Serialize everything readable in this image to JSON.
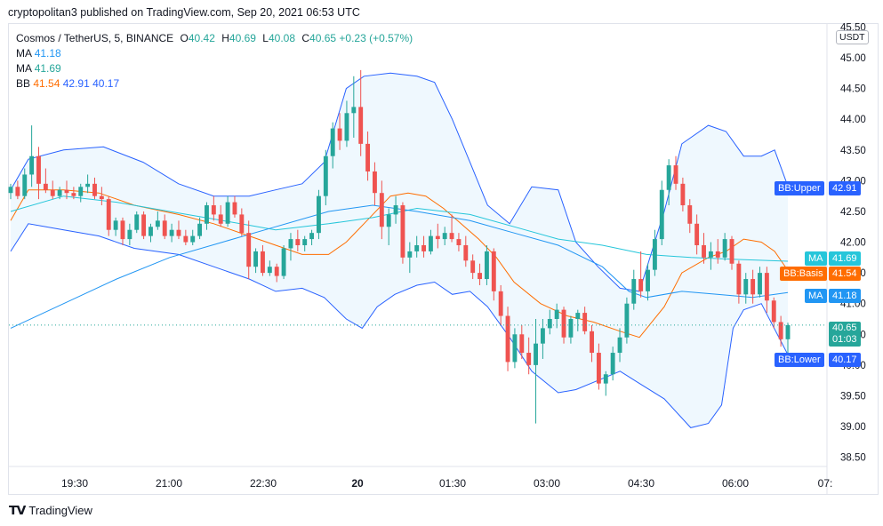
{
  "header": {
    "published": "cryptopolitan3 published on TradingView.com, Sep 20, 2021 06:53 UTC"
  },
  "legend": {
    "symbol": "Cosmos / TetherUS, 5, BINANCE",
    "o_key": "O",
    "o": "40.42",
    "h_key": "H",
    "h": "40.69",
    "l_key": "L",
    "l": "40.08",
    "c_key": "C",
    "c": "40.65",
    "change": "+0.23 (+0.57%)",
    "ma1_label": "MA",
    "ma1": "41.18",
    "ma2_label": "MA",
    "ma2": "41.69",
    "bb_label": "BB",
    "bb_basis": "41.54",
    "bb_upper": "42.91",
    "bb_lower": "40.17"
  },
  "axis": {
    "currency": "USDT"
  },
  "badges": {
    "bb_upper": {
      "label": "BB:Upper",
      "value": "42.91"
    },
    "ma2": {
      "label": "MA",
      "value": "41.69"
    },
    "bb_basis": {
      "label": "BB:Basis",
      "value": "41.54"
    },
    "ma1": {
      "label": "MA",
      "value": "41.18"
    },
    "last": {
      "value": "40.65",
      "countdown": "01:03"
    },
    "bb_lower": {
      "label": "BB:Lower",
      "value": "40.17"
    }
  },
  "footer": {
    "brand": "TradingView"
  },
  "colors": {
    "up": "#26a69a",
    "down": "#ef5350",
    "basis": "#ff6d00",
    "band": "#2962ff",
    "ma1": "#2196f3",
    "ma2": "#26c6da",
    "fill": "#2196f3"
  },
  "chart_data": {
    "type": "candlestick",
    "title": "Cosmos / TetherUS, 5, BINANCE",
    "y_ticks": [
      "38.50",
      "39.00",
      "39.50",
      "40.00",
      "40.50",
      "41.00",
      "41.50",
      "42.00",
      "42.50",
      "43.00",
      "43.50",
      "44.00",
      "44.50",
      "45.00",
      "45.50"
    ],
    "ylim": [
      38.35,
      45.55
    ],
    "x_ticks": [
      "19:30",
      "21:00",
      "22:30",
      "20",
      "01:30",
      "03:00",
      "04:30",
      "06:00",
      "07:"
    ],
    "last_price": 40.65,
    "series": [
      {
        "name": "BB:Upper",
        "points": [
          [
            0,
            42.85
          ],
          [
            20,
            43.35
          ],
          [
            60,
            43.5
          ],
          [
            105,
            43.55
          ],
          [
            150,
            43.3
          ],
          [
            190,
            42.95
          ],
          [
            230,
            42.75
          ],
          [
            270,
            42.75
          ],
          [
            300,
            42.85
          ],
          [
            330,
            42.95
          ],
          [
            355,
            43.3
          ],
          [
            380,
            44.5
          ],
          [
            400,
            44.7
          ],
          [
            430,
            44.75
          ],
          [
            460,
            44.7
          ],
          [
            480,
            44.6
          ],
          [
            500,
            44.0
          ],
          [
            520,
            43.3
          ],
          [
            540,
            42.6
          ],
          [
            565,
            42.3
          ],
          [
            590,
            42.9
          ],
          [
            620,
            42.85
          ],
          [
            640,
            42.0
          ],
          [
            665,
            41.6
          ],
          [
            690,
            41.25
          ],
          [
            712,
            41.2
          ],
          [
            740,
            42.5
          ],
          [
            760,
            43.6
          ],
          [
            790,
            43.9
          ],
          [
            810,
            43.8
          ],
          [
            830,
            43.4
          ],
          [
            850,
            43.4
          ],
          [
            865,
            43.5
          ],
          [
            880,
            42.91
          ]
        ]
      },
      {
        "name": "BB:Basis",
        "points": [
          [
            0,
            42.35
          ],
          [
            20,
            42.85
          ],
          [
            60,
            42.85
          ],
          [
            100,
            42.8
          ],
          [
            140,
            42.6
          ],
          [
            190,
            42.45
          ],
          [
            230,
            42.3
          ],
          [
            270,
            42.1
          ],
          [
            300,
            41.95
          ],
          [
            330,
            41.8
          ],
          [
            360,
            41.8
          ],
          [
            380,
            42.0
          ],
          [
            400,
            42.3
          ],
          [
            430,
            42.75
          ],
          [
            450,
            42.8
          ],
          [
            470,
            42.75
          ],
          [
            490,
            42.55
          ],
          [
            510,
            42.3
          ],
          [
            530,
            42.05
          ],
          [
            550,
            41.75
          ],
          [
            570,
            41.35
          ],
          [
            600,
            41.0
          ],
          [
            630,
            40.8
          ],
          [
            660,
            40.7
          ],
          [
            690,
            40.55
          ],
          [
            712,
            40.45
          ],
          [
            740,
            40.95
          ],
          [
            760,
            41.5
          ],
          [
            790,
            41.75
          ],
          [
            810,
            41.85
          ],
          [
            830,
            42.05
          ],
          [
            850,
            42.0
          ],
          [
            865,
            41.85
          ],
          [
            880,
            41.54
          ]
        ]
      },
      {
        "name": "BB:Lower",
        "points": [
          [
            0,
            41.85
          ],
          [
            20,
            42.3
          ],
          [
            60,
            42.2
          ],
          [
            100,
            42.1
          ],
          [
            140,
            41.9
          ],
          [
            190,
            41.8
          ],
          [
            230,
            41.6
          ],
          [
            270,
            41.4
          ],
          [
            300,
            41.2
          ],
          [
            330,
            41.25
          ],
          [
            355,
            41.1
          ],
          [
            380,
            40.75
          ],
          [
            398,
            40.6
          ],
          [
            415,
            40.95
          ],
          [
            435,
            41.15
          ],
          [
            460,
            41.3
          ],
          [
            480,
            41.35
          ],
          [
            500,
            41.15
          ],
          [
            520,
            41.2
          ],
          [
            540,
            40.95
          ],
          [
            565,
            40.45
          ],
          [
            590,
            39.9
          ],
          [
            620,
            39.55
          ],
          [
            640,
            39.6
          ],
          [
            665,
            39.75
          ],
          [
            690,
            39.9
          ],
          [
            712,
            39.7
          ],
          [
            740,
            39.45
          ],
          [
            770,
            38.98
          ],
          [
            790,
            39.05
          ],
          [
            805,
            39.35
          ],
          [
            818,
            40.6
          ],
          [
            830,
            40.9
          ],
          [
            850,
            41.0
          ],
          [
            880,
            40.17
          ]
        ]
      },
      {
        "name": "MA",
        "points": [
          [
            0,
            42.5
          ],
          [
            60,
            42.75
          ],
          [
            120,
            42.65
          ],
          [
            180,
            42.5
          ],
          [
            240,
            42.35
          ],
          [
            300,
            42.2
          ],
          [
            360,
            42.3
          ],
          [
            410,
            42.4
          ],
          [
            460,
            42.55
          ],
          [
            520,
            42.45
          ],
          [
            570,
            42.25
          ],
          [
            620,
            42.05
          ],
          [
            670,
            41.95
          ],
          [
            720,
            41.8
          ],
          [
            770,
            41.75
          ],
          [
            820,
            41.72
          ],
          [
            880,
            41.69
          ]
        ]
      },
      {
        "name": "MA",
        "points": [
          [
            0,
            40.6
          ],
          [
            60,
            41.0
          ],
          [
            120,
            41.4
          ],
          [
            180,
            41.75
          ],
          [
            240,
            42.0
          ],
          [
            300,
            42.25
          ],
          [
            360,
            42.5
          ],
          [
            410,
            42.6
          ],
          [
            460,
            42.5
          ],
          [
            520,
            42.35
          ],
          [
            570,
            42.15
          ],
          [
            620,
            41.95
          ],
          [
            670,
            41.6
          ],
          [
            700,
            41.2
          ],
          [
            720,
            41.1
          ],
          [
            760,
            41.2
          ],
          [
            800,
            41.15
          ],
          [
            840,
            41.1
          ],
          [
            880,
            41.18
          ]
        ]
      }
    ],
    "candles": [
      [
        42.8,
        42.95,
        42.7,
        42.9
      ],
      [
        42.9,
        43.0,
        42.7,
        42.75
      ],
      [
        42.75,
        43.2,
        42.7,
        43.1
      ],
      [
        43.1,
        43.9,
        42.9,
        43.4
      ],
      [
        43.4,
        43.55,
        42.7,
        42.95
      ],
      [
        42.95,
        43.2,
        42.8,
        42.85
      ],
      [
        42.85,
        43.0,
        42.7,
        42.75
      ],
      [
        42.75,
        42.9,
        42.7,
        42.85
      ],
      [
        42.85,
        43.0,
        42.7,
        42.8
      ],
      [
        42.8,
        42.9,
        42.7,
        42.75
      ],
      [
        42.75,
        42.95,
        42.65,
        42.9
      ],
      [
        42.9,
        43.1,
        42.8,
        42.95
      ],
      [
        42.95,
        43.05,
        42.7,
        42.75
      ],
      [
        42.75,
        42.9,
        42.6,
        42.7
      ],
      [
        42.7,
        42.75,
        42.1,
        42.2
      ],
      [
        42.2,
        42.4,
        42.1,
        42.35
      ],
      [
        42.35,
        42.4,
        41.95,
        42.05
      ],
      [
        42.05,
        42.3,
        41.95,
        42.2
      ],
      [
        42.2,
        42.5,
        42.15,
        42.45
      ],
      [
        42.45,
        42.5,
        42.05,
        42.1
      ],
      [
        42.1,
        42.3,
        42.0,
        42.25
      ],
      [
        42.25,
        42.5,
        42.2,
        42.35
      ],
      [
        42.35,
        42.45,
        42.05,
        42.1
      ],
      [
        42.1,
        42.3,
        42.0,
        42.2
      ],
      [
        42.2,
        42.35,
        42.05,
        42.1
      ],
      [
        42.1,
        42.2,
        41.95,
        42.0
      ],
      [
        42.0,
        42.2,
        41.95,
        42.1
      ],
      [
        42.1,
        42.4,
        42.05,
        42.3
      ],
      [
        42.3,
        42.65,
        42.2,
        42.6
      ],
      [
        42.6,
        42.75,
        42.35,
        42.45
      ],
      [
        42.45,
        42.6,
        42.25,
        42.3
      ],
      [
        42.3,
        42.75,
        42.25,
        42.65
      ],
      [
        42.65,
        42.75,
        42.4,
        42.45
      ],
      [
        42.45,
        42.55,
        42.1,
        42.15
      ],
      [
        42.15,
        42.35,
        41.4,
        41.6
      ],
      [
        41.6,
        41.9,
        41.5,
        41.85
      ],
      [
        41.85,
        41.95,
        41.45,
        41.5
      ],
      [
        41.5,
        41.7,
        41.45,
        41.6
      ],
      [
        41.6,
        41.65,
        41.35,
        41.45
      ],
      [
        41.45,
        41.95,
        41.4,
        41.9
      ],
      [
        41.9,
        42.15,
        41.7,
        42.05
      ],
      [
        42.05,
        42.2,
        41.85,
        41.95
      ],
      [
        41.95,
        42.1,
        41.85,
        42.05
      ],
      [
        42.05,
        42.2,
        41.95,
        42.15
      ],
      [
        42.15,
        42.85,
        42.05,
        42.75
      ],
      [
        42.75,
        43.5,
        42.6,
        43.4
      ],
      [
        43.4,
        43.95,
        43.2,
        43.85
      ],
      [
        43.85,
        44.1,
        43.5,
        43.65
      ],
      [
        43.65,
        44.3,
        43.55,
        44.1
      ],
      [
        44.1,
        44.7,
        43.7,
        44.2
      ],
      [
        44.2,
        44.8,
        43.4,
        43.6
      ],
      [
        43.6,
        43.8,
        43.0,
        43.15
      ],
      [
        43.15,
        43.3,
        42.6,
        42.8
      ],
      [
        42.8,
        43.0,
        42.05,
        42.25
      ],
      [
        42.25,
        42.55,
        41.95,
        42.45
      ],
      [
        42.45,
        42.75,
        42.3,
        42.6
      ],
      [
        42.6,
        42.65,
        41.65,
        41.75
      ],
      [
        41.75,
        42.0,
        41.5,
        41.85
      ],
      [
        41.85,
        42.1,
        41.75,
        41.95
      ],
      [
        41.95,
        42.1,
        41.75,
        41.85
      ],
      [
        41.85,
        42.2,
        41.8,
        42.1
      ],
      [
        42.1,
        42.3,
        41.9,
        42.05
      ],
      [
        42.05,
        42.25,
        41.95,
        42.15
      ],
      [
        42.15,
        42.45,
        42.0,
        42.05
      ],
      [
        42.05,
        42.15,
        41.85,
        41.95
      ],
      [
        41.95,
        42.1,
        41.6,
        41.7
      ],
      [
        41.7,
        41.8,
        41.4,
        41.5
      ],
      [
        41.5,
        41.65,
        41.3,
        41.4
      ],
      [
        41.4,
        41.95,
        41.3,
        41.85
      ],
      [
        41.85,
        41.9,
        41.05,
        41.2
      ],
      [
        41.2,
        41.3,
        40.65,
        40.8
      ],
      [
        40.8,
        40.95,
        39.9,
        40.05
      ],
      [
        40.05,
        40.6,
        39.95,
        40.5
      ],
      [
        40.5,
        40.65,
        40.1,
        40.2
      ],
      [
        40.2,
        40.45,
        39.85,
        40.0
      ],
      [
        40.0,
        40.75,
        39.05,
        40.35
      ],
      [
        40.35,
        40.75,
        40.1,
        40.6
      ],
      [
        40.6,
        40.9,
        40.5,
        40.75
      ],
      [
        40.75,
        41.0,
        40.6,
        40.9
      ],
      [
        40.9,
        40.95,
        40.35,
        40.45
      ],
      [
        40.45,
        40.8,
        40.35,
        40.75
      ],
      [
        40.75,
        40.9,
        40.55,
        40.85
      ],
      [
        40.85,
        40.95,
        40.5,
        40.55
      ],
      [
        40.55,
        40.65,
        40.05,
        40.2
      ],
      [
        40.2,
        40.35,
        39.6,
        39.7
      ],
      [
        39.7,
        39.9,
        39.5,
        39.85
      ],
      [
        39.85,
        40.3,
        39.75,
        40.2
      ],
      [
        40.2,
        40.6,
        40.05,
        40.45
      ],
      [
        40.45,
        41.1,
        40.35,
        41.0
      ],
      [
        41.0,
        41.55,
        40.9,
        41.4
      ],
      [
        41.4,
        41.85,
        41.1,
        41.2
      ],
      [
        41.2,
        41.65,
        41.05,
        41.55
      ],
      [
        41.55,
        42.2,
        41.45,
        42.05
      ],
      [
        42.05,
        43.0,
        41.95,
        42.85
      ],
      [
        42.85,
        43.35,
        42.6,
        43.25
      ],
      [
        43.25,
        43.4,
        42.85,
        42.95
      ],
      [
        42.95,
        43.05,
        42.5,
        42.6
      ],
      [
        42.6,
        42.7,
        42.15,
        42.3
      ],
      [
        42.3,
        42.45,
        41.8,
        41.95
      ],
      [
        41.95,
        42.15,
        41.65,
        41.75
      ],
      [
        41.75,
        42.0,
        41.55,
        41.85
      ],
      [
        41.85,
        42.05,
        41.65,
        41.75
      ],
      [
        41.75,
        42.15,
        41.7,
        42.05
      ],
      [
        42.05,
        42.1,
        41.55,
        41.65
      ],
      [
        41.65,
        41.7,
        41.0,
        41.15
      ],
      [
        41.15,
        41.5,
        41.0,
        41.4
      ],
      [
        41.4,
        41.55,
        41.0,
        41.15
      ],
      [
        41.15,
        41.6,
        41.1,
        41.5
      ],
      [
        41.5,
        41.6,
        40.85,
        41.05
      ],
      [
        41.05,
        41.1,
        40.6,
        40.7
      ],
      [
        40.7,
        40.8,
        40.3,
        40.42
      ],
      [
        40.42,
        40.69,
        40.08,
        40.65
      ]
    ]
  }
}
